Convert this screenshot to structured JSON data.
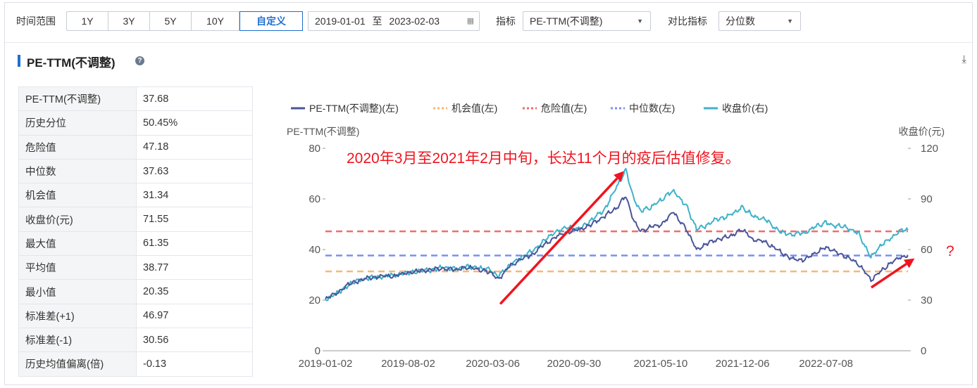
{
  "toolbar": {
    "time_range_label": "时间范围",
    "ranges": [
      "1Y",
      "3Y",
      "5Y",
      "10Y",
      "自定义"
    ],
    "active_range": "自定义",
    "date_start": "2019-01-01",
    "date_sep": "至",
    "date_end": "2023-02-03",
    "indicator_label": "指标",
    "indicator_value": "PE-TTM(不调整)",
    "compare_label": "对比指标",
    "compare_value": "分位数"
  },
  "panel": {
    "title": "PE-TTM(不调整)"
  },
  "stats": [
    {
      "label": "PE-TTM(不调整)",
      "value": "37.68"
    },
    {
      "label": "历史分位",
      "value": "50.45%"
    },
    {
      "label": "危险值",
      "value": "47.18"
    },
    {
      "label": "中位数",
      "value": "37.63"
    },
    {
      "label": "机会值",
      "value": "31.34"
    },
    {
      "label": "收盘价(元)",
      "value": "71.55"
    },
    {
      "label": "最大值",
      "value": "61.35"
    },
    {
      "label": "平均值",
      "value": "38.77"
    },
    {
      "label": "最小值",
      "value": "20.35"
    },
    {
      "label": "标准差(+1)",
      "value": "46.97"
    },
    {
      "label": "标准差(-1)",
      "value": "30.56"
    },
    {
      "label": "历史均值偏离(倍)",
      "value": "-0.13"
    }
  ],
  "colors": {
    "pe": "#4a5599",
    "opportunity": "#f5b878",
    "danger": "#ef6e6e",
    "median": "#7b8ff0",
    "close": "#3fb2c9",
    "annotation": "#f0141e",
    "accent": "#1f6fd1"
  },
  "chart_data": {
    "type": "line",
    "legend": [
      "PE-TTM(不调整)(左)",
      "机会值(左)",
      "危险值(左)",
      "中位数(左)",
      "收盘价(右)"
    ],
    "legend_position": "top-left",
    "ylabel_left": "PE-TTM(不调整)",
    "ylabel_right": "收盘价(元)",
    "ylim_left": [
      0,
      80
    ],
    "ylim_right": [
      0,
      120
    ],
    "yticks_left": [
      0,
      20,
      40,
      60,
      80
    ],
    "yticks_right": [
      0,
      30,
      60,
      90,
      120
    ],
    "xlim": [
      "2019-01-02",
      "2023-02-03"
    ],
    "xticks": [
      "2019-01-02",
      "2019-08-02",
      "2020-03-06",
      "2020-09-30",
      "2021-05-10",
      "2021-12-06",
      "2022-07-08"
    ],
    "grid": false,
    "reference_lines": [
      {
        "name": "机会值(左)",
        "value": 31.34
      },
      {
        "name": "危险值(左)",
        "value": 47.18
      },
      {
        "name": "中位数(左)",
        "value": 37.63
      }
    ],
    "series": [
      {
        "name": "PE-TTM(不调整)(左)",
        "axis": "left",
        "points": [
          [
            "2019-01-02",
            20.4
          ],
          [
            "2019-02-01",
            23
          ],
          [
            "2019-03-01",
            26
          ],
          [
            "2019-04-01",
            28
          ],
          [
            "2019-05-01",
            29
          ],
          [
            "2019-06-01",
            29.5
          ],
          [
            "2019-07-01",
            29.5
          ],
          [
            "2019-08-01",
            31
          ],
          [
            "2019-09-01",
            31.5
          ],
          [
            "2019-10-01",
            32
          ],
          [
            "2019-11-01",
            32.5
          ],
          [
            "2019-12-01",
            32
          ],
          [
            "2020-01-02",
            33
          ],
          [
            "2020-02-01",
            32
          ],
          [
            "2020-03-01",
            31
          ],
          [
            "2020-03-19",
            28
          ],
          [
            "2020-04-15",
            33
          ],
          [
            "2020-05-15",
            36
          ],
          [
            "2020-06-15",
            38
          ],
          [
            "2020-07-15",
            42
          ],
          [
            "2020-08-15",
            45
          ],
          [
            "2020-09-15",
            47
          ],
          [
            "2020-10-15",
            48
          ],
          [
            "2020-11-15",
            50
          ],
          [
            "2020-12-15",
            53
          ],
          [
            "2021-01-15",
            56
          ],
          [
            "2021-02-10",
            61.35
          ],
          [
            "2021-03-01",
            52
          ],
          [
            "2021-03-20",
            47
          ],
          [
            "2021-04-15",
            49
          ],
          [
            "2021-05-15",
            50
          ],
          [
            "2021-06-10",
            55
          ],
          [
            "2021-07-15",
            48
          ],
          [
            "2021-08-10",
            40
          ],
          [
            "2021-09-01",
            42
          ],
          [
            "2021-10-01",
            44
          ],
          [
            "2021-11-01",
            45
          ],
          [
            "2021-12-06",
            48
          ],
          [
            "2022-01-01",
            44
          ],
          [
            "2022-02-01",
            43
          ],
          [
            "2022-03-15",
            39
          ],
          [
            "2022-04-15",
            36
          ],
          [
            "2022-05-15",
            36
          ],
          [
            "2022-06-15",
            39
          ],
          [
            "2022-07-08",
            41
          ],
          [
            "2022-08-01",
            39
          ],
          [
            "2022-09-01",
            37
          ],
          [
            "2022-10-01",
            34
          ],
          [
            "2022-10-31",
            28
          ],
          [
            "2022-11-15",
            30
          ],
          [
            "2022-12-15",
            34
          ],
          [
            "2023-01-15",
            37
          ],
          [
            "2023-02-03",
            37.68
          ]
        ]
      },
      {
        "name": "收盘价(右)",
        "axis": "right",
        "points": [
          [
            "2019-01-02",
            30.5
          ],
          [
            "2019-02-01",
            34
          ],
          [
            "2019-03-01",
            39
          ],
          [
            "2019-04-01",
            42
          ],
          [
            "2019-05-01",
            43.5
          ],
          [
            "2019-06-01",
            44
          ],
          [
            "2019-07-01",
            45
          ],
          [
            "2019-08-01",
            46
          ],
          [
            "2019-09-01",
            47.5
          ],
          [
            "2019-10-01",
            48
          ],
          [
            "2019-11-01",
            49.5
          ],
          [
            "2019-12-01",
            48.5
          ],
          [
            "2020-01-02",
            50
          ],
          [
            "2020-02-01",
            49
          ],
          [
            "2020-03-01",
            48
          ],
          [
            "2020-03-19",
            44
          ],
          [
            "2020-04-15",
            50
          ],
          [
            "2020-05-15",
            55
          ],
          [
            "2020-06-15",
            59
          ],
          [
            "2020-07-15",
            65
          ],
          [
            "2020-08-15",
            71
          ],
          [
            "2020-09-15",
            73
          ],
          [
            "2020-10-15",
            72
          ],
          [
            "2020-11-15",
            78
          ],
          [
            "2020-12-15",
            83
          ],
          [
            "2021-01-15",
            96
          ],
          [
            "2021-02-10",
            107
          ],
          [
            "2021-03-01",
            91
          ],
          [
            "2021-03-20",
            83
          ],
          [
            "2021-04-15",
            85
          ],
          [
            "2021-05-15",
            90
          ],
          [
            "2021-06-10",
            95
          ],
          [
            "2021-07-15",
            86
          ],
          [
            "2021-08-10",
            72
          ],
          [
            "2021-09-01",
            74
          ],
          [
            "2021-10-01",
            78
          ],
          [
            "2021-11-01",
            80
          ],
          [
            "2021-12-06",
            85
          ],
          [
            "2022-01-01",
            80
          ],
          [
            "2022-02-01",
            78
          ],
          [
            "2022-03-15",
            70
          ],
          [
            "2022-04-15",
            69
          ],
          [
            "2022-05-15",
            70
          ],
          [
            "2022-06-15",
            74
          ],
          [
            "2022-07-08",
            76
          ],
          [
            "2022-08-01",
            74
          ],
          [
            "2022-09-01",
            73
          ],
          [
            "2022-10-01",
            69
          ],
          [
            "2022-10-31",
            55
          ],
          [
            "2022-11-15",
            60
          ],
          [
            "2022-12-15",
            66
          ],
          [
            "2023-01-15",
            71
          ],
          [
            "2023-02-03",
            71.55
          ]
        ]
      }
    ],
    "annotations": [
      {
        "text": "2020年3月至2021年2月中旬，长达11个月的疫后估值修复。",
        "arrow_from": [
          "2020-03-25",
          18.5
        ],
        "arrow_to": [
          "2021-02-05",
          71
        ]
      },
      {
        "text": "?",
        "arrow_from": [
          "2022-11-01",
          25
        ],
        "arrow_to": [
          "2023-02-20",
          36.5
        ]
      }
    ]
  }
}
